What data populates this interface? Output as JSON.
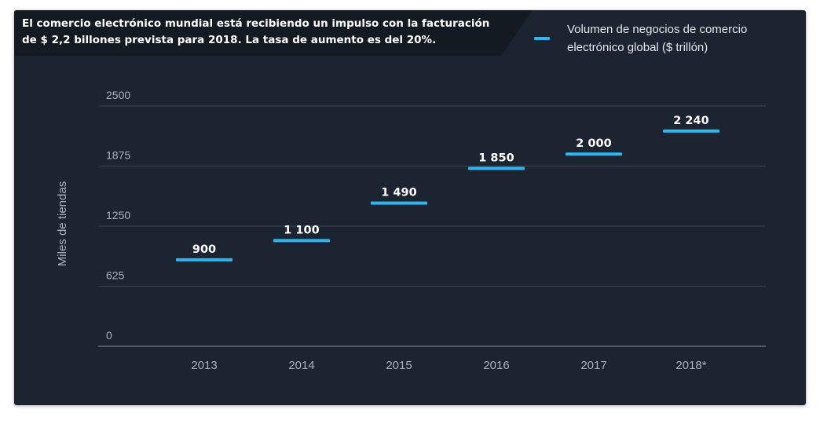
{
  "chart_data": {
    "type": "bar",
    "title": "El comercio electrónico mundial está recibiendo un impulso con la facturación de $ 2,2 billones prevista para 2018. La tasa de aumento es del 20%.",
    "categories": [
      "2013",
      "2014",
      "2015",
      "2016",
      "2017",
      "2018*"
    ],
    "series": [
      {
        "name": "Volumen de negocios de comercio electrónico global ($ trillón)",
        "values": [
          900,
          1100,
          1490,
          1850,
          2000,
          2240
        ],
        "labels": [
          "900",
          "1 100",
          "1 490",
          "1 850",
          "2 000",
          "2 240"
        ],
        "color": "#2fb5f0"
      }
    ],
    "ylabel": "Miles de tiendas",
    "ylim": [
      0,
      2500
    ],
    "yticks": [
      0,
      625,
      1250,
      1875,
      2500
    ],
    "grid": true,
    "legend_position": "top-right",
    "background": "#1b2430"
  }
}
